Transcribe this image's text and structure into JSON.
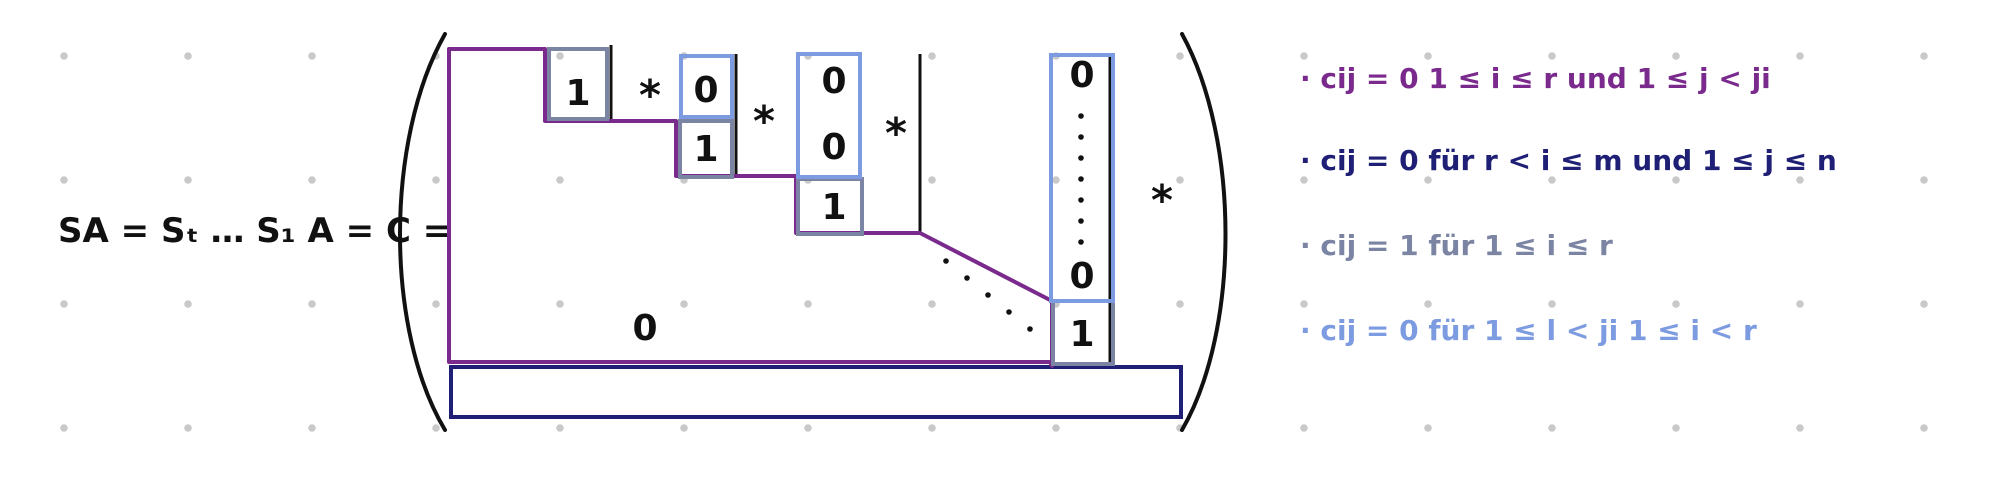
{
  "diagram": {
    "lhs_text": "SA = Sₜ … S₁ A = C =",
    "cells": {
      "one_a": "1",
      "zero_b": "0",
      "one_b": "1",
      "zero_c1": "0",
      "zero_c2": "0",
      "one_c": "1",
      "zero_d_top": "0",
      "zero_d_bottom": "0",
      "one_d": "1",
      "zero_lower": "0"
    },
    "stars": [
      "*",
      "*",
      "*",
      "*"
    ],
    "notes": [
      "· cij = 0   1 ≤ i ≤ r  und  1 ≤ j < ji",
      "· cij = 0   für  r < i ≤ m  und  1 ≤ j ≤ n",
      "· cij = 1   für  1 ≤ i ≤ r",
      "· cij = 0   für  1 ≤ l < ji    1 ≤ i < r"
    ],
    "colors": {
      "purple": "#7a2a8c",
      "navy": "#1f1f75",
      "gray": "#7b84a3",
      "blue": "#7d9be0",
      "dot": "#c9c9c9"
    }
  }
}
